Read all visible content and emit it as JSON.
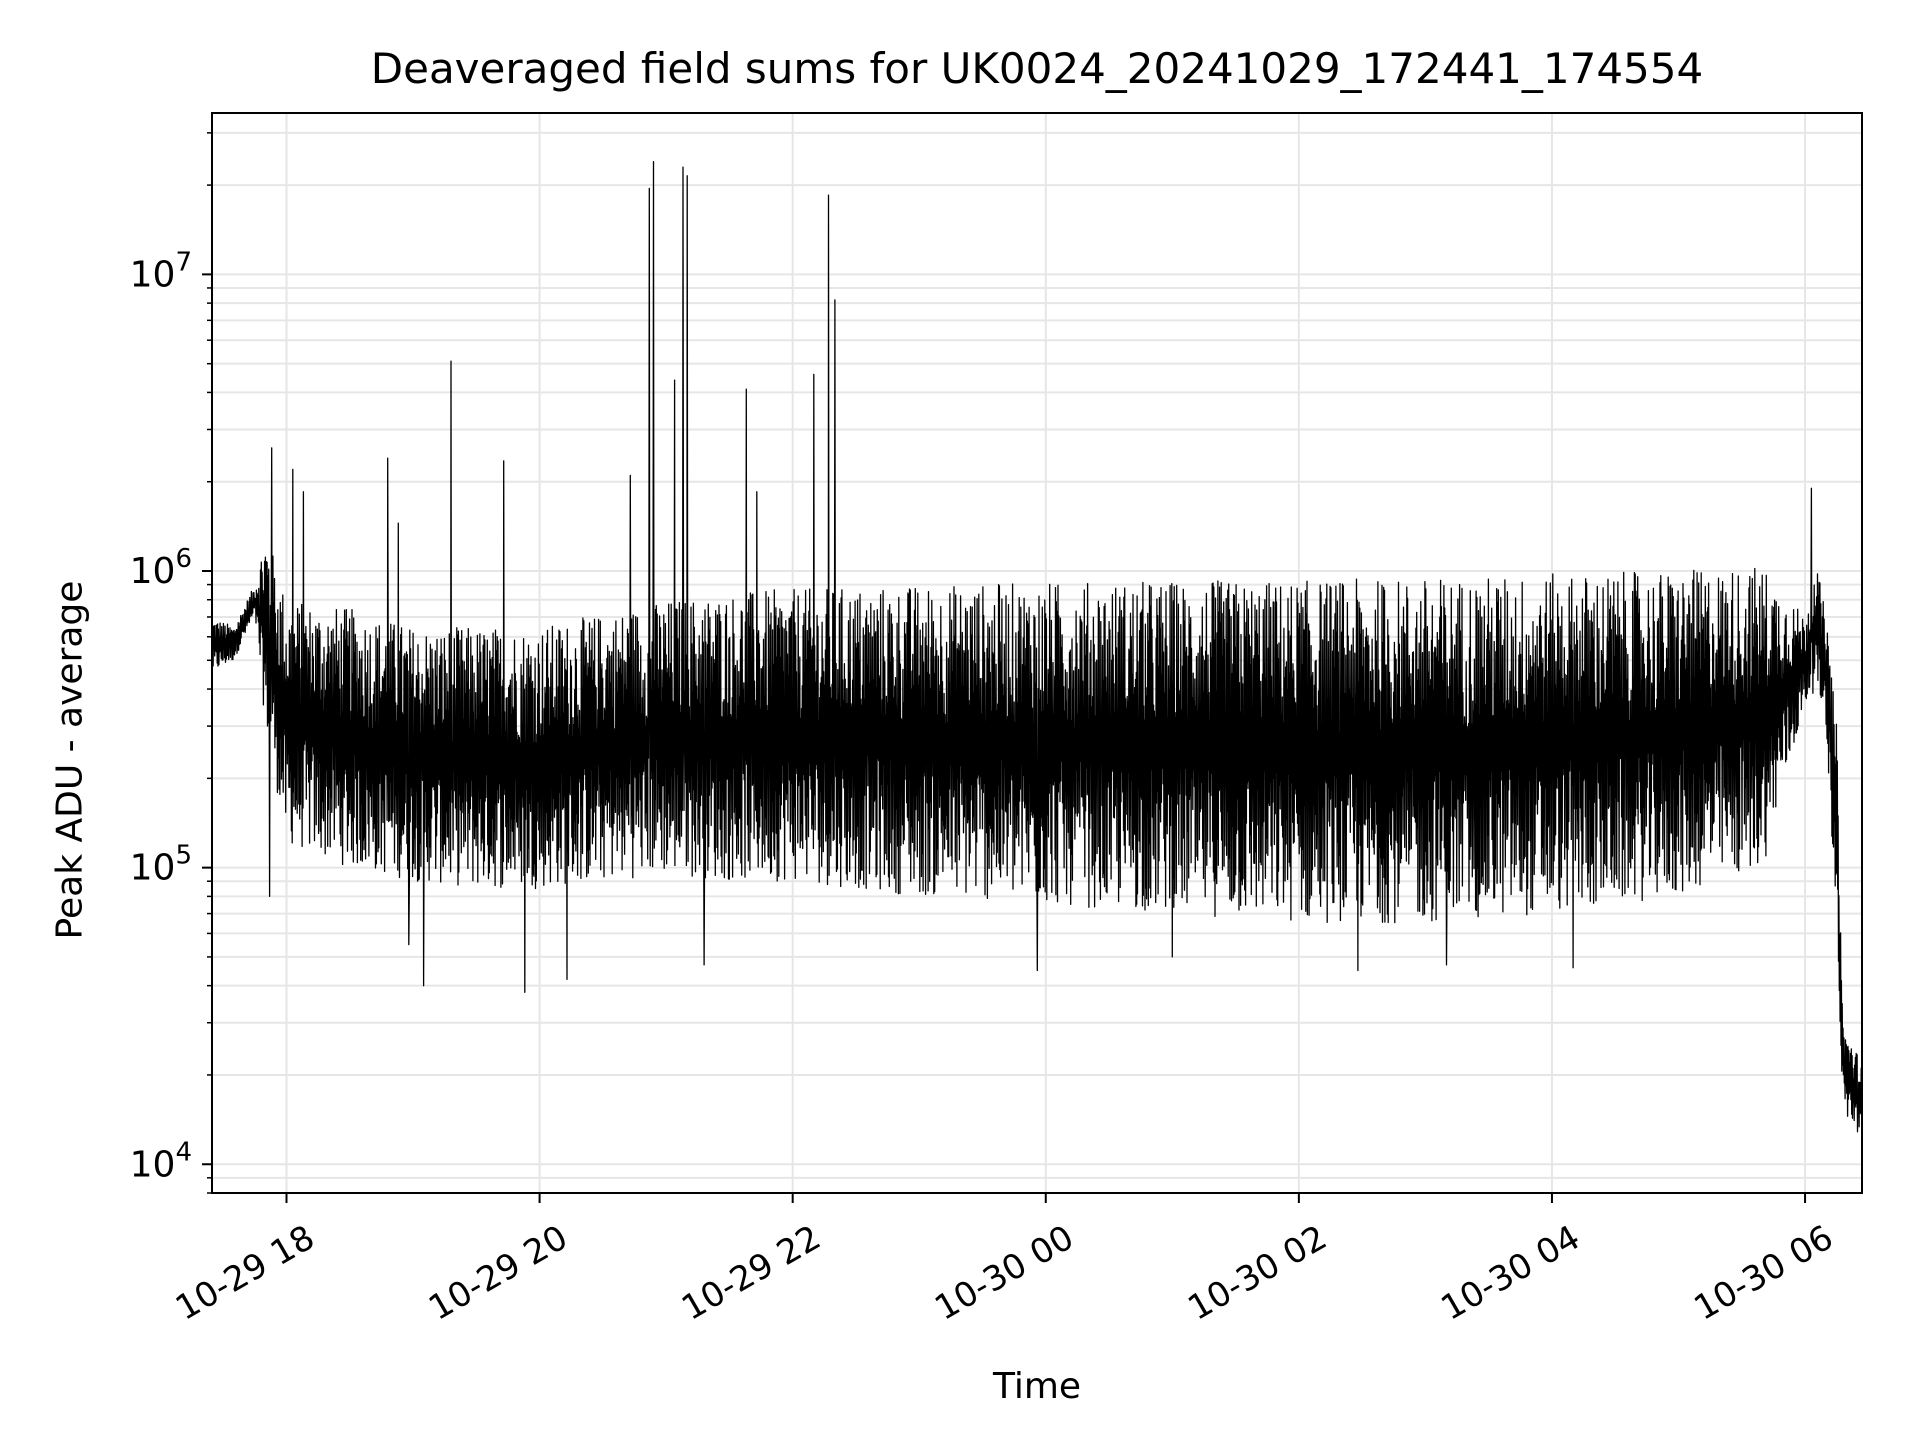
{
  "chart_data": {
    "type": "line",
    "title": "Deaveraged field sums for UK0024_20241029_172441_174554",
    "xlabel": "Time",
    "ylabel": "Peak ADU - average",
    "yscale": "log",
    "ylim": [
      8000,
      35000000
    ],
    "xlim": [
      "2024-10-29T17:24:41",
      "2024-10-30T06:27:00"
    ],
    "grid": true,
    "line_color": "#000000",
    "grid_color": "#e6e6e6",
    "x_ticks": [
      {
        "value": "2024-10-29T18:00:00",
        "label": "10-29 18"
      },
      {
        "value": "2024-10-29T20:00:00",
        "label": "10-29 20"
      },
      {
        "value": "2024-10-29T22:00:00",
        "label": "10-29 22"
      },
      {
        "value": "2024-10-30T00:00:00",
        "label": "10-30 00"
      },
      {
        "value": "2024-10-30T02:00:00",
        "label": "10-30 02"
      },
      {
        "value": "2024-10-30T04:00:00",
        "label": "10-30 04"
      },
      {
        "value": "2024-10-30T06:00:00",
        "label": "10-30 06"
      }
    ],
    "y_ticks": [
      {
        "value": 10000,
        "base": "10",
        "exp": "4"
      },
      {
        "value": 100000,
        "base": "10",
        "exp": "5"
      },
      {
        "value": 1000000,
        "base": "10",
        "exp": "6"
      },
      {
        "value": 10000000,
        "base": "10",
        "exp": "7"
      }
    ],
    "series": [
      {
        "envelope_upper": [
          [
            "2024-10-29T17:25:00",
            700000
          ],
          [
            "2024-10-29T17:35:00",
            650000
          ],
          [
            "2024-10-29T17:45:00",
            900000
          ],
          [
            "2024-10-29T17:50:00",
            1400000
          ],
          [
            "2024-10-29T18:00:00",
            800000
          ],
          [
            "2024-10-29T18:30:00",
            750000
          ],
          [
            "2024-10-29T19:00:00",
            650000
          ],
          [
            "2024-10-29T19:30:00",
            650000
          ],
          [
            "2024-10-29T20:00:00",
            650000
          ],
          [
            "2024-10-29T20:30:00",
            720000
          ],
          [
            "2024-10-29T21:00:00",
            800000
          ],
          [
            "2024-10-29T21:30:00",
            850000
          ],
          [
            "2024-10-29T22:00:00",
            870000
          ],
          [
            "2024-10-29T23:00:00",
            900000
          ],
          [
            "2024-10-30T00:00:00",
            920000
          ],
          [
            "2024-10-30T01:00:00",
            930000
          ],
          [
            "2024-10-30T02:00:00",
            930000
          ],
          [
            "2024-10-30T03:00:00",
            950000
          ],
          [
            "2024-10-30T04:00:00",
            980000
          ],
          [
            "2024-10-30T05:00:00",
            1000000
          ],
          [
            "2024-10-30T05:40:00",
            1050000
          ],
          [
            "2024-10-30T06:00:00",
            700000
          ],
          [
            "2024-10-30T06:05:00",
            1100000
          ],
          [
            "2024-10-30T06:10:00",
            700000
          ],
          [
            "2024-10-30T06:15:00",
            300000
          ],
          [
            "2024-10-30T06:18:00",
            30000
          ],
          [
            "2024-10-30T06:27:00",
            22000
          ]
        ],
        "envelope_lower": [
          [
            "2024-10-29T17:25:00",
            450000
          ],
          [
            "2024-10-29T17:35:00",
            500000
          ],
          [
            "2024-10-29T17:45:00",
            700000
          ],
          [
            "2024-10-29T17:50:00",
            300000
          ],
          [
            "2024-10-29T18:00:00",
            120000
          ],
          [
            "2024-10-29T18:30:00",
            100000
          ],
          [
            "2024-10-29T19:00:00",
            90000
          ],
          [
            "2024-10-29T19:30:00",
            85000
          ],
          [
            "2024-10-29T20:00:00",
            85000
          ],
          [
            "2024-10-29T20:30:00",
            90000
          ],
          [
            "2024-10-29T21:00:00",
            95000
          ],
          [
            "2024-10-29T21:30:00",
            90000
          ],
          [
            "2024-10-29T22:00:00",
            90000
          ],
          [
            "2024-10-29T23:00:00",
            80000
          ],
          [
            "2024-10-30T00:00:00",
            75000
          ],
          [
            "2024-10-30T01:00:00",
            70000
          ],
          [
            "2024-10-30T02:00:00",
            65000
          ],
          [
            "2024-10-30T03:00:00",
            65000
          ],
          [
            "2024-10-30T04:00:00",
            70000
          ],
          [
            "2024-10-30T05:00:00",
            80000
          ],
          [
            "2024-10-30T05:40:00",
            100000
          ],
          [
            "2024-10-30T06:00:00",
            350000
          ],
          [
            "2024-10-30T06:05:00",
            400000
          ],
          [
            "2024-10-30T06:10:00",
            300000
          ],
          [
            "2024-10-30T06:15:00",
            60000
          ],
          [
            "2024-10-30T06:18:00",
            15000
          ],
          [
            "2024-10-30T06:27:00",
            12000
          ]
        ],
        "peaks": [
          [
            "2024-10-29T17:53:00",
            2600000
          ],
          [
            "2024-10-29T18:03:00",
            2200000
          ],
          [
            "2024-10-29T18:08:00",
            1850000
          ],
          [
            "2024-10-29T18:48:00",
            2400000
          ],
          [
            "2024-10-29T18:53:00",
            1450000
          ],
          [
            "2024-10-29T19:18:00",
            5100000
          ],
          [
            "2024-10-29T19:43:00",
            2350000
          ],
          [
            "2024-10-29T20:43:00",
            2100000
          ],
          [
            "2024-10-29T20:52:00",
            19500000
          ],
          [
            "2024-10-29T20:54:00",
            24000000
          ],
          [
            "2024-10-29T21:04:00",
            4400000
          ],
          [
            "2024-10-29T21:08:00",
            23000000
          ],
          [
            "2024-10-29T21:10:00",
            21500000
          ],
          [
            "2024-10-29T21:38:00",
            4100000
          ],
          [
            "2024-10-29T21:43:00",
            1850000
          ],
          [
            "2024-10-29T22:10:00",
            4600000
          ],
          [
            "2024-10-29T22:17:00",
            18500000
          ],
          [
            "2024-10-29T22:20:00",
            8200000
          ],
          [
            "2024-10-30T06:03:00",
            1900000
          ]
        ],
        "dips": [
          [
            "2024-10-29T17:52:00",
            80000
          ],
          [
            "2024-10-29T18:58:00",
            55000
          ],
          [
            "2024-10-29T19:05:00",
            40000
          ],
          [
            "2024-10-29T19:53:00",
            38000
          ],
          [
            "2024-10-29T20:13:00",
            42000
          ],
          [
            "2024-10-29T21:18:00",
            47000
          ],
          [
            "2024-10-29T23:56:00",
            45000
          ],
          [
            "2024-10-30T01:00:00",
            50000
          ],
          [
            "2024-10-30T02:28:00",
            45000
          ],
          [
            "2024-10-30T03:10:00",
            47000
          ],
          [
            "2024-10-30T04:10:00",
            46000
          ]
        ]
      }
    ]
  }
}
